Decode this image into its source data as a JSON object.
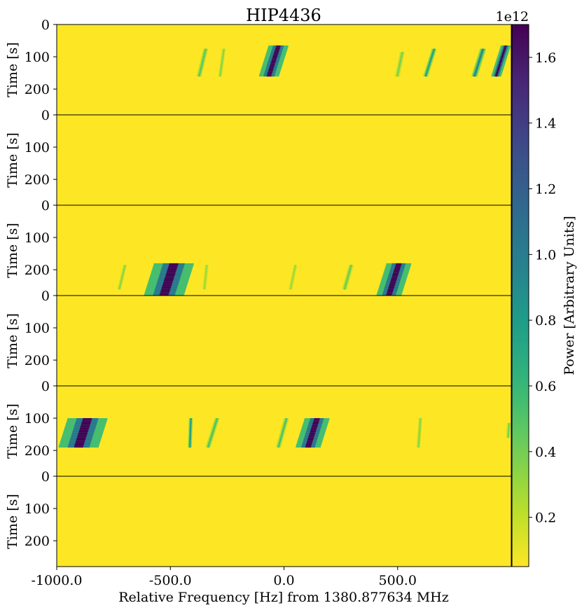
{
  "chart_data": {
    "type": "heatmap",
    "title": "HIP4436",
    "xlabel": "Relative Frequency [Hz] from 1380.877634 MHz",
    "ylabel": "Time [s]",
    "x_ticks": [
      "-1000.0",
      "-500.0",
      "0.0",
      "500.0"
    ],
    "x_tick_values": [
      -1000,
      -500,
      0,
      500
    ],
    "xlim": [
      -1000,
      1000
    ],
    "y_ticks": [
      "0",
      "100",
      "200"
    ],
    "y_tick_values": [
      0,
      100,
      200
    ],
    "ylim": [
      280,
      0
    ],
    "colorbar": {
      "label": "Power [Arbitrary Units]",
      "offset_label": "1e12",
      "colormap": "viridis",
      "range": [
        0.05,
        1.7
      ],
      "ticks": [
        "0.2",
        "0.4",
        "0.6",
        "0.8",
        "1.0",
        "1.2",
        "1.4",
        "1.6"
      ],
      "tick_values": [
        0.2,
        0.4,
        0.6,
        0.8,
        1.0,
        1.2,
        1.4,
        1.6
      ]
    },
    "background_level": 0.05,
    "panels": [
      {
        "index": 1,
        "drifting_signals": [
          {
            "freq_at_top": -25,
            "t_start": 65,
            "t_end": 160,
            "drift_hz_per_s": -0.45,
            "peak": 1.7,
            "width_hz": 20
          },
          {
            "freq_at_top": 975,
            "t_start": 65,
            "t_end": 160,
            "drift_hz_per_s": -0.45,
            "peak": 1.7,
            "width_hz": 10
          },
          {
            "freq_at_top": 875,
            "t_start": 75,
            "t_end": 160,
            "drift_hz_per_s": -0.45,
            "peak": 1.0,
            "width_hz": 6
          },
          {
            "freq_at_top": 660,
            "t_start": 75,
            "t_end": 160,
            "drift_hz_per_s": -0.45,
            "peak": 0.8,
            "width_hz": 5
          },
          {
            "freq_at_top": 520,
            "t_start": 85,
            "t_end": 160,
            "drift_hz_per_s": -0.3,
            "peak": 0.4,
            "width_hz": 5
          },
          {
            "freq_at_top": -345,
            "t_start": 75,
            "t_end": 160,
            "drift_hz_per_s": -0.35,
            "peak": 0.5,
            "width_hz": 5
          },
          {
            "freq_at_top": -265,
            "t_start": 75,
            "t_end": 160,
            "drift_hz_per_s": -0.2,
            "peak": 0.35,
            "width_hz": 4
          }
        ]
      },
      {
        "index": 2,
        "drifting_signals": []
      },
      {
        "index": 3,
        "drifting_signals": [
          {
            "freq_at_top": -485,
            "t_start": 180,
            "t_end": 280,
            "drift_hz_per_s": -0.45,
            "peak": 1.7,
            "width_hz": 40
          },
          {
            "freq_at_top": 505,
            "t_start": 180,
            "t_end": 280,
            "drift_hz_per_s": -0.45,
            "peak": 1.7,
            "width_hz": 25
          },
          {
            "freq_at_top": 295,
            "t_start": 185,
            "t_end": 260,
            "drift_hz_per_s": -0.4,
            "peak": 0.45,
            "width_hz": 5
          },
          {
            "freq_at_top": 50,
            "t_start": 185,
            "t_end": 260,
            "drift_hz_per_s": -0.3,
            "peak": 0.3,
            "width_hz": 4
          },
          {
            "freq_at_top": -700,
            "t_start": 185,
            "t_end": 260,
            "drift_hz_per_s": -0.35,
            "peak": 0.35,
            "width_hz": 4
          },
          {
            "freq_at_top": -340,
            "t_start": 185,
            "t_end": 260,
            "drift_hz_per_s": -0.15,
            "peak": 0.3,
            "width_hz": 4
          }
        ]
      },
      {
        "index": 4,
        "drifting_signals": []
      },
      {
        "index": 5,
        "drifting_signals": [
          {
            "freq_at_top": -865,
            "t_start": 100,
            "t_end": 190,
            "drift_hz_per_s": -0.45,
            "peak": 1.7,
            "width_hz": 40
          },
          {
            "freq_at_top": 145,
            "t_start": 100,
            "t_end": 190,
            "drift_hz_per_s": -0.45,
            "peak": 1.7,
            "width_hz": 25
          },
          {
            "freq_at_top": -295,
            "t_start": 100,
            "t_end": 190,
            "drift_hz_per_s": -0.45,
            "peak": 0.55,
            "width_hz": 5
          },
          {
            "freq_at_top": -410,
            "t_start": 100,
            "t_end": 190,
            "drift_hz_per_s": -0.05,
            "peak": 0.8,
            "width_hz": 4
          },
          {
            "freq_at_top": 10,
            "t_start": 100,
            "t_end": 190,
            "drift_hz_per_s": -0.4,
            "peak": 0.55,
            "width_hz": 5
          },
          {
            "freq_at_top": 600,
            "t_start": 100,
            "t_end": 190,
            "drift_hz_per_s": -0.1,
            "peak": 0.35,
            "width_hz": 4
          },
          {
            "freq_at_top": 990,
            "t_start": 115,
            "t_end": 160,
            "drift_hz_per_s": -0.1,
            "peak": 0.4,
            "width_hz": 4
          }
        ]
      },
      {
        "index": 6,
        "drifting_signals": []
      }
    ]
  }
}
